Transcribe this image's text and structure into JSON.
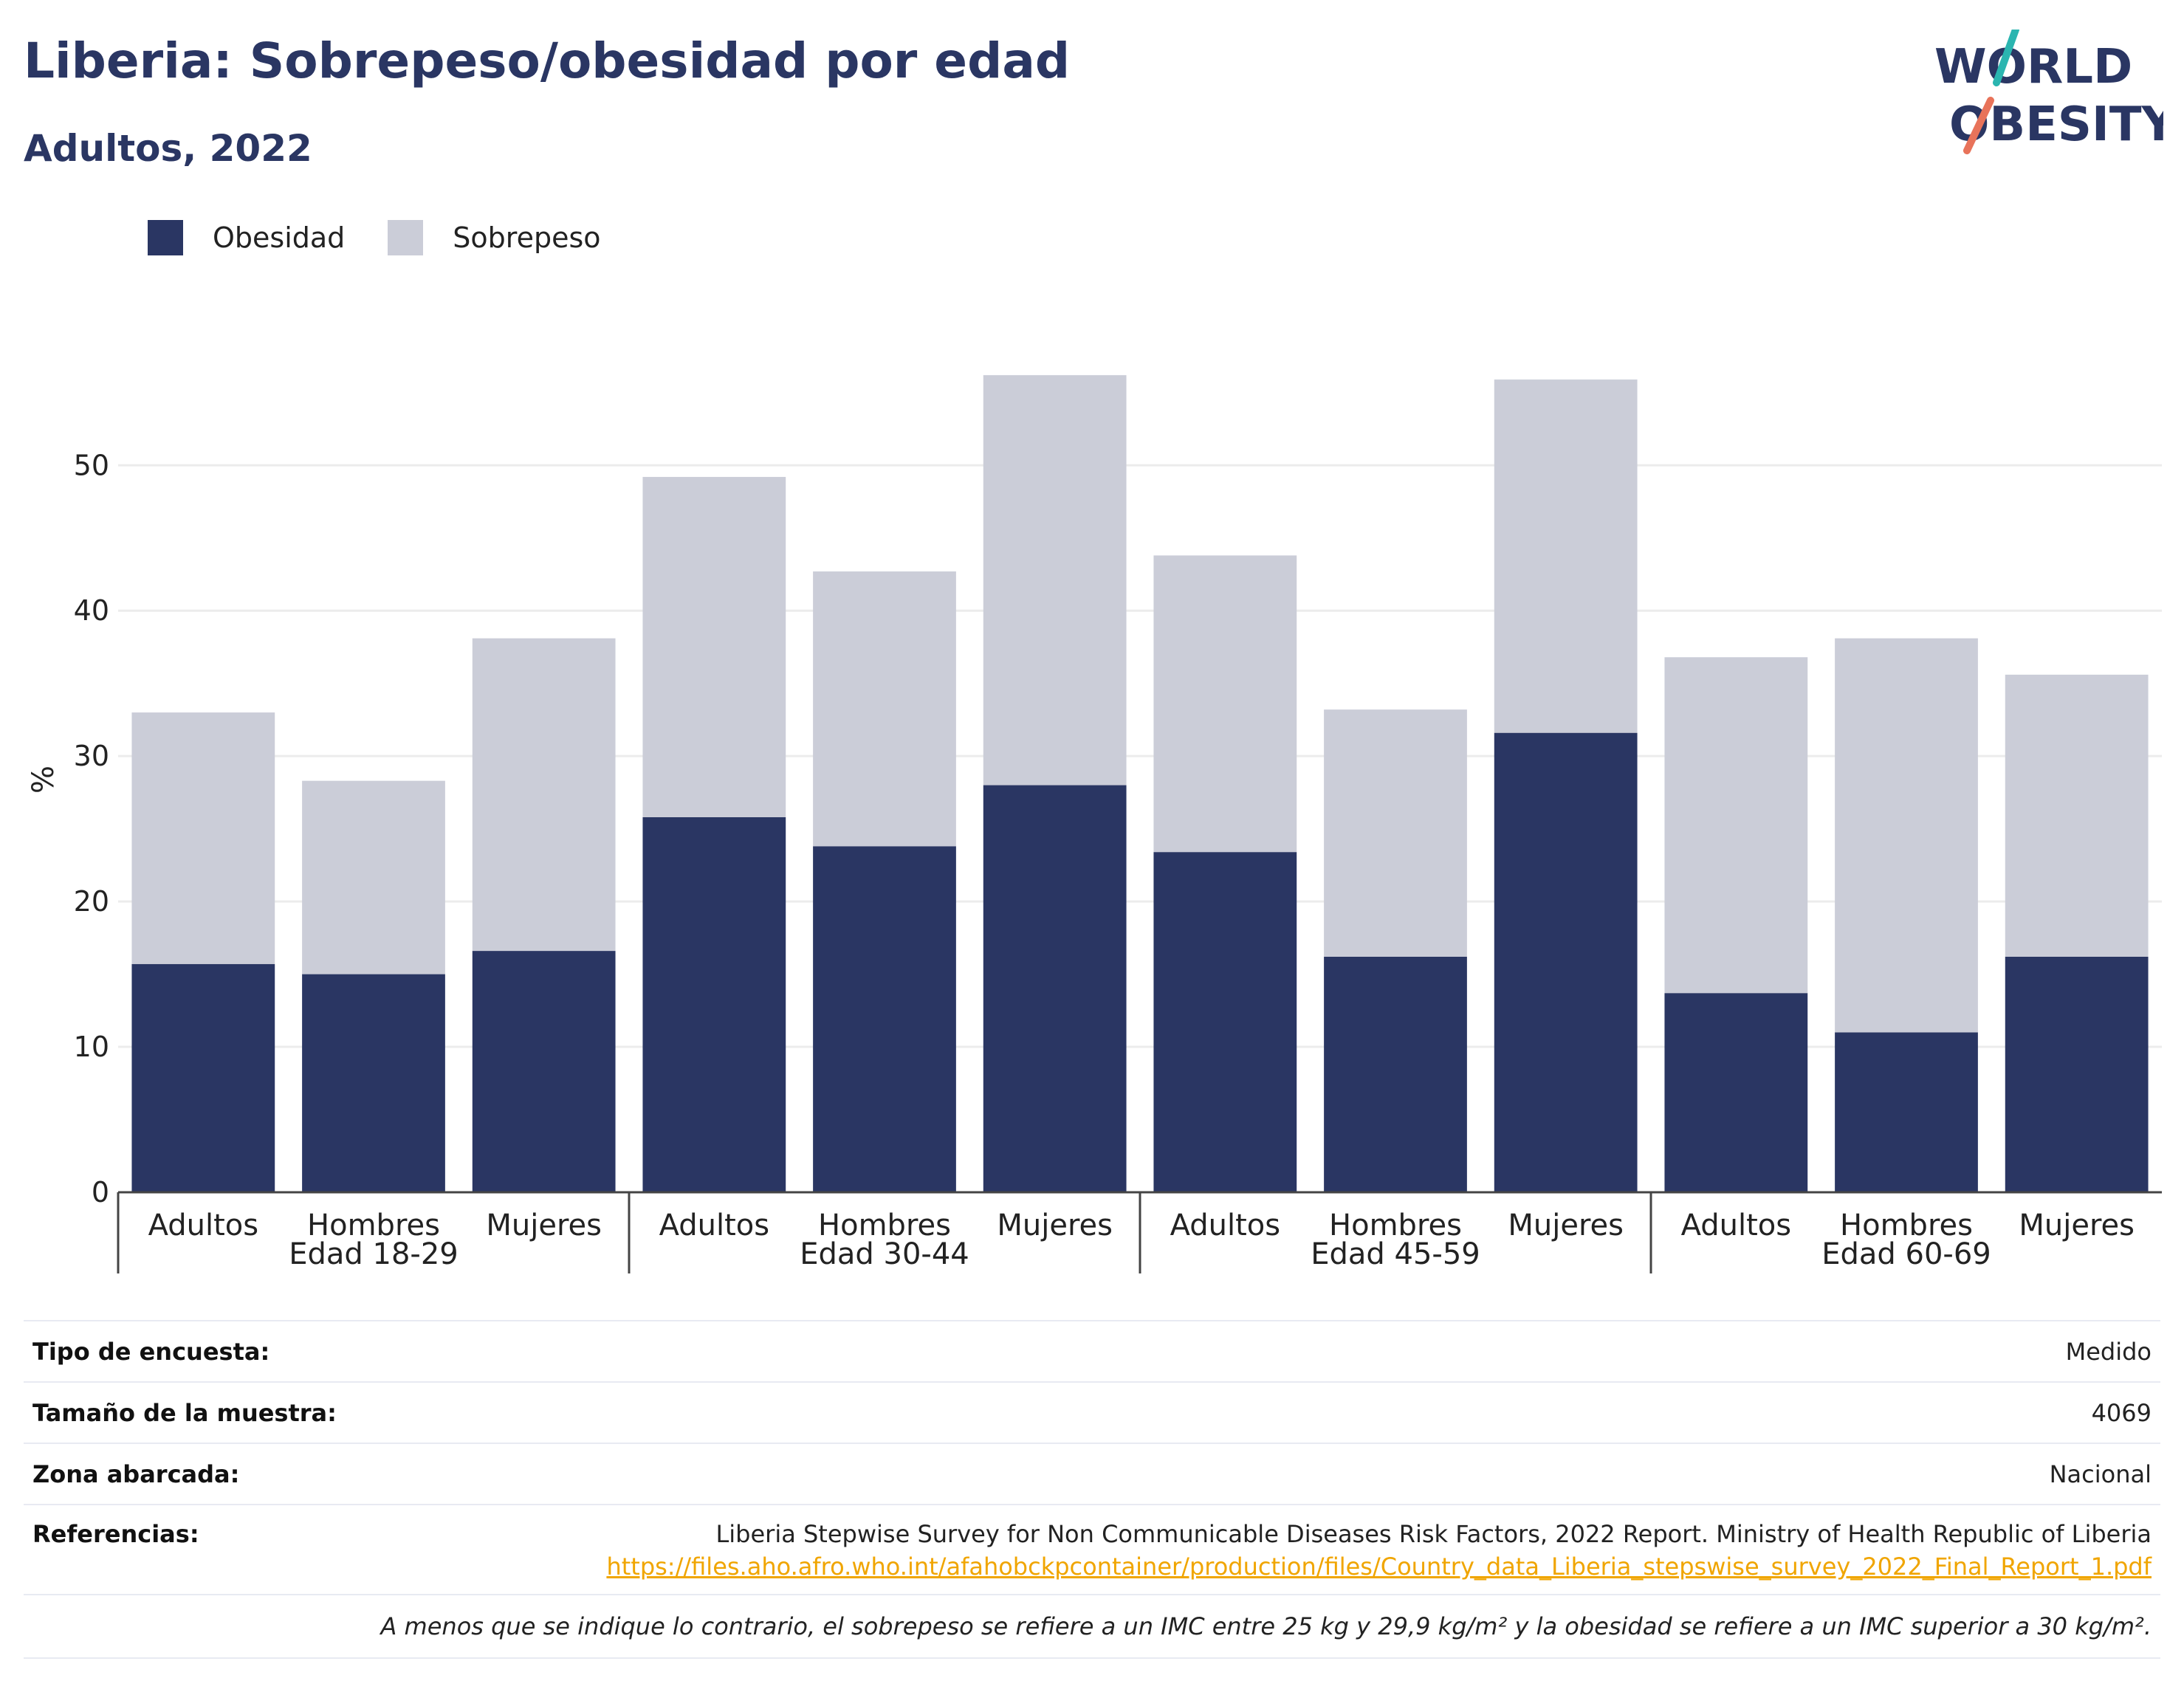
{
  "header": {
    "title": "Liberia: Sobrepeso/obesidad por edad",
    "subtitle": "Adultos, 2022"
  },
  "logo": {
    "line1": "WORLD",
    "line2": "OBESITY",
    "accent_teal": "#2bb5b0",
    "accent_coral": "#e8735a",
    "text_color": "#2a3663"
  },
  "colors": {
    "obesity": "#2a3663",
    "overweight": "#cbcdd8",
    "grid": "#ececec",
    "axis": "#444444"
  },
  "chart_data": {
    "type": "bar",
    "stacked": true,
    "ylabel": "%",
    "ylim": [
      0,
      58
    ],
    "yticks": [
      0,
      10,
      20,
      30,
      40,
      50
    ],
    "grid": true,
    "legend": {
      "position": "top-left",
      "entries": [
        "Obesidad",
        "Sobrepeso"
      ]
    },
    "groups": [
      {
        "label": "Edad 18-29",
        "categories": [
          "Adultos",
          "Hombres",
          "Mujeres"
        ]
      },
      {
        "label": "Edad 30-44",
        "categories": [
          "Adultos",
          "Hombres",
          "Mujeres"
        ]
      },
      {
        "label": "Edad 45-59",
        "categories": [
          "Adultos",
          "Hombres",
          "Mujeres"
        ]
      },
      {
        "label": "Edad 60-69",
        "categories": [
          "Adultos",
          "Hombres",
          "Mujeres"
        ]
      }
    ],
    "series": [
      {
        "name": "Obesidad",
        "values": [
          15.7,
          15.0,
          16.6,
          25.8,
          23.8,
          28.0,
          23.4,
          16.2,
          31.6,
          13.7,
          11.0,
          16.2
        ]
      },
      {
        "name": "Sobrepeso",
        "values": [
          17.3,
          13.3,
          21.5,
          23.4,
          18.9,
          28.2,
          20.4,
          17.0,
          24.3,
          23.1,
          27.1,
          19.4
        ]
      }
    ]
  },
  "table": {
    "rows": [
      {
        "key": "Tipo de encuesta:",
        "value": "Medido"
      },
      {
        "key": "Tamaño de la muestra:",
        "value": "4069"
      },
      {
        "key": "Zona abarcada:",
        "value": "Nacional"
      }
    ],
    "references": {
      "key": "Referencias:",
      "text": "Liberia Stepwise Survey for Non Communicable Diseases Risk Factors, 2022 Report. Ministry of Health Republic of Liberia",
      "link": "https://files.aho.afro.who.int/afahobckpcontainer/production/files/Country_data_Liberia_stepswise_survey_2022_Final_Report_1.pdf"
    },
    "note": "A menos que se indique lo contrario, el sobrepeso se refiere a un IMC entre 25 kg y 29,9 kg/m² y la obesidad se refiere a un IMC superior a 30 kg/m²."
  }
}
